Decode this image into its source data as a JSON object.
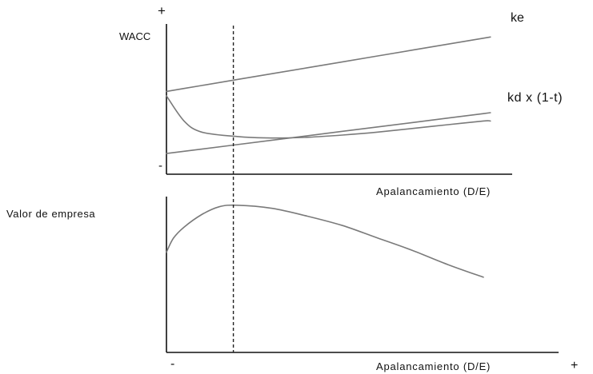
{
  "chart_data": [
    {
      "type": "line",
      "ylabel": "WACC",
      "xlabel": "Apalancamiento (D/E)",
      "y_axis_ticks": {
        "high": "+",
        "low": "-"
      },
      "x": [
        0.0,
        0.05,
        0.1,
        0.2,
        0.3,
        0.4,
        0.5,
        0.6,
        0.7,
        0.8,
        0.9,
        0.92
      ],
      "series": [
        {
          "name": "ke",
          "values": [
            5.6,
            5.8,
            6.0,
            6.4,
            6.8,
            7.2,
            7.6,
            8.0,
            8.4,
            8.8,
            9.2,
            9.28
          ]
        },
        {
          "name": "kd x (1-t)",
          "values": [
            1.4,
            1.55,
            1.7,
            2.0,
            2.3,
            2.6,
            2.9,
            3.2,
            3.5,
            3.8,
            4.1,
            4.16
          ]
        },
        {
          "name": "",
          "values": [
            5.3,
            3.6,
            2.85,
            2.55,
            2.45,
            2.5,
            2.65,
            2.85,
            3.1,
            3.35,
            3.6,
            3.6
          ]
        }
      ],
      "xlim": [
        0,
        1
      ],
      "ylim": [
        0,
        10
      ],
      "grid": false
    },
    {
      "type": "line",
      "ylabel": "Valor de empresa",
      "xlabel": "Apalancamiento (D/E)",
      "x_axis_ticks": {
        "low": "-",
        "high": "+"
      },
      "x": [
        0.0,
        0.02,
        0.05,
        0.1,
        0.15,
        0.2,
        0.3,
        0.4,
        0.5,
        0.6,
        0.7,
        0.8,
        0.9
      ],
      "series": [
        {
          "name": "",
          "values": [
            6.4,
            7.3,
            8.0,
            8.8,
            9.3,
            9.4,
            9.2,
            8.7,
            8.1,
            7.3,
            6.5,
            5.6,
            4.8
          ]
        }
      ],
      "xlim": [
        0,
        1
      ],
      "ylim": [
        0,
        10
      ],
      "grid": false
    }
  ],
  "reference_line": {
    "x": 0.19,
    "style": "dashed"
  },
  "colors": {
    "axis": "#111111",
    "curves": "#7a7a7a",
    "dashed": "#222222"
  }
}
